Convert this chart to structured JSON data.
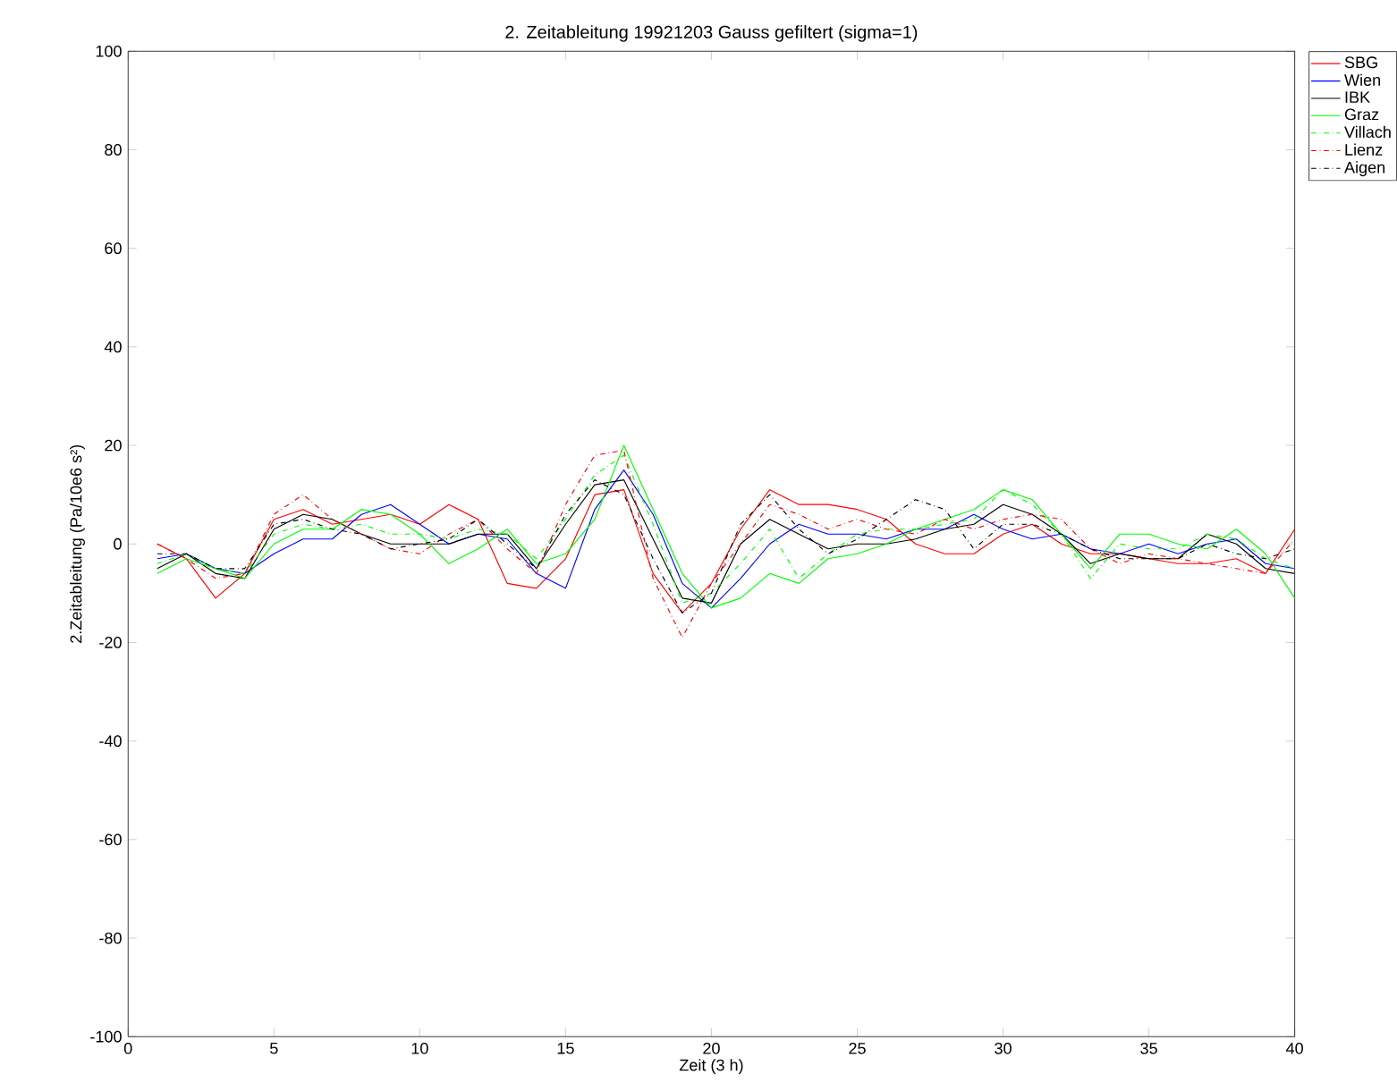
{
  "chart_data": {
    "type": "line",
    "title": "2. Zeitableitung 19921203 Gauss gefiltert (sigma=1)",
    "xlabel": "Zeit (3 h)",
    "ylabel": "2.Zeitableitung (Pa/10e6 s²)",
    "x": [
      1,
      2,
      3,
      4,
      5,
      6,
      7,
      8,
      9,
      10,
      11,
      12,
      13,
      14,
      15,
      16,
      17,
      18,
      19,
      20,
      21,
      22,
      23,
      24,
      25,
      26,
      27,
      28,
      29,
      30,
      31,
      32,
      33,
      34,
      35,
      36,
      37,
      38,
      39,
      40
    ],
    "xlim": [
      0,
      40
    ],
    "ylim": [
      -100,
      100
    ],
    "xticks": [
      0,
      5,
      10,
      15,
      20,
      25,
      30,
      35,
      40
    ],
    "yticks": [
      -100,
      -80,
      -60,
      -40,
      -20,
      0,
      20,
      40,
      60,
      80,
      100
    ],
    "grid": false,
    "legend": "top right",
    "marker": "none",
    "series": [
      {
        "name": "SBG",
        "color": "#ff0000",
        "line_style": "solid",
        "values": [
          0,
          -3,
          -11,
          -6,
          5,
          7,
          4,
          5,
          6,
          4,
          8,
          5,
          -8,
          -9,
          -3,
          10,
          11,
          -6,
          -14,
          -8,
          3,
          11,
          8,
          8,
          7,
          5,
          0,
          -2,
          -2,
          2,
          4,
          0,
          -2,
          -2,
          -3,
          -4,
          -4,
          -3,
          -6,
          3
        ]
      },
      {
        "name": "Wien",
        "color": "#0000ff",
        "line_style": "solid",
        "values": [
          -3,
          -2,
          -5,
          -6,
          -2,
          1,
          1,
          6,
          8,
          4,
          0,
          2,
          1,
          -6,
          -9,
          7,
          15,
          6,
          -8,
          -13,
          -7,
          0,
          4,
          2,
          2,
          1,
          3,
          3,
          6,
          3,
          1,
          2,
          -1,
          -2,
          0,
          -2,
          0,
          1,
          -4,
          -5
        ]
      },
      {
        "name": "IBK",
        "color": "#000000",
        "line_style": "solid",
        "values": [
          -5,
          -2,
          -6,
          -7,
          3,
          6,
          5,
          2,
          0,
          0,
          0,
          2,
          2,
          -5,
          4,
          12,
          13,
          1,
          -11,
          -12,
          0,
          5,
          2,
          -1,
          0,
          0,
          1,
          3,
          4,
          8,
          6,
          2,
          -4,
          -2,
          -3,
          -3,
          2,
          0,
          -5,
          -6
        ]
      },
      {
        "name": "Graz",
        "color": "#00ff00",
        "line_style": "solid",
        "values": [
          -6,
          -3,
          -5,
          -7,
          0,
          3,
          3,
          7,
          6,
          2,
          -4,
          -1,
          3,
          -4,
          -2,
          5,
          20,
          7,
          -6,
          -13,
          -11,
          -6,
          -8,
          -3,
          -2,
          0,
          3,
          5,
          7,
          11,
          9,
          2,
          -5,
          2,
          2,
          0,
          -1,
          3,
          -2,
          -11
        ]
      },
      {
        "name": "Villach",
        "color": "#00ff00",
        "line_style": "dashdot",
        "values": [
          -4,
          -2,
          -5,
          -6,
          2,
          4,
          3,
          4,
          2,
          2,
          1,
          3,
          2,
          -3,
          5,
          14,
          18,
          4,
          -12,
          -10,
          -4,
          3,
          -7,
          -2,
          2,
          3,
          3,
          4,
          5,
          11,
          8,
          2,
          -7,
          0,
          -1,
          -1,
          2,
          1,
          -3,
          -5
        ]
      },
      {
        "name": "Lienz",
        "color": "#ff0000",
        "line_style": "dashdot",
        "values": [
          0,
          -3,
          -7,
          -6,
          6,
          10,
          5,
          2,
          -1,
          -2,
          2,
          5,
          -1,
          -6,
          8,
          18,
          19,
          -7,
          -19,
          -8,
          0,
          8,
          6,
          3,
          5,
          3,
          2,
          5,
          3,
          5,
          6,
          5,
          -1,
          -4,
          -2,
          -3,
          -4,
          -5,
          -6,
          1
        ]
      },
      {
        "name": "Aigen",
        "color": "#000000",
        "line_style": "dashdot",
        "values": [
          -2,
          -2,
          -5,
          -5,
          4,
          5,
          3,
          2,
          -1,
          0,
          1,
          5,
          0,
          -5,
          6,
          13,
          10,
          -3,
          -14,
          -10,
          4,
          10,
          3,
          -2,
          1,
          5,
          9,
          7,
          -1,
          4,
          4,
          2,
          -1,
          -3,
          -3,
          -3,
          0,
          -2,
          -3,
          -1
        ]
      }
    ]
  }
}
